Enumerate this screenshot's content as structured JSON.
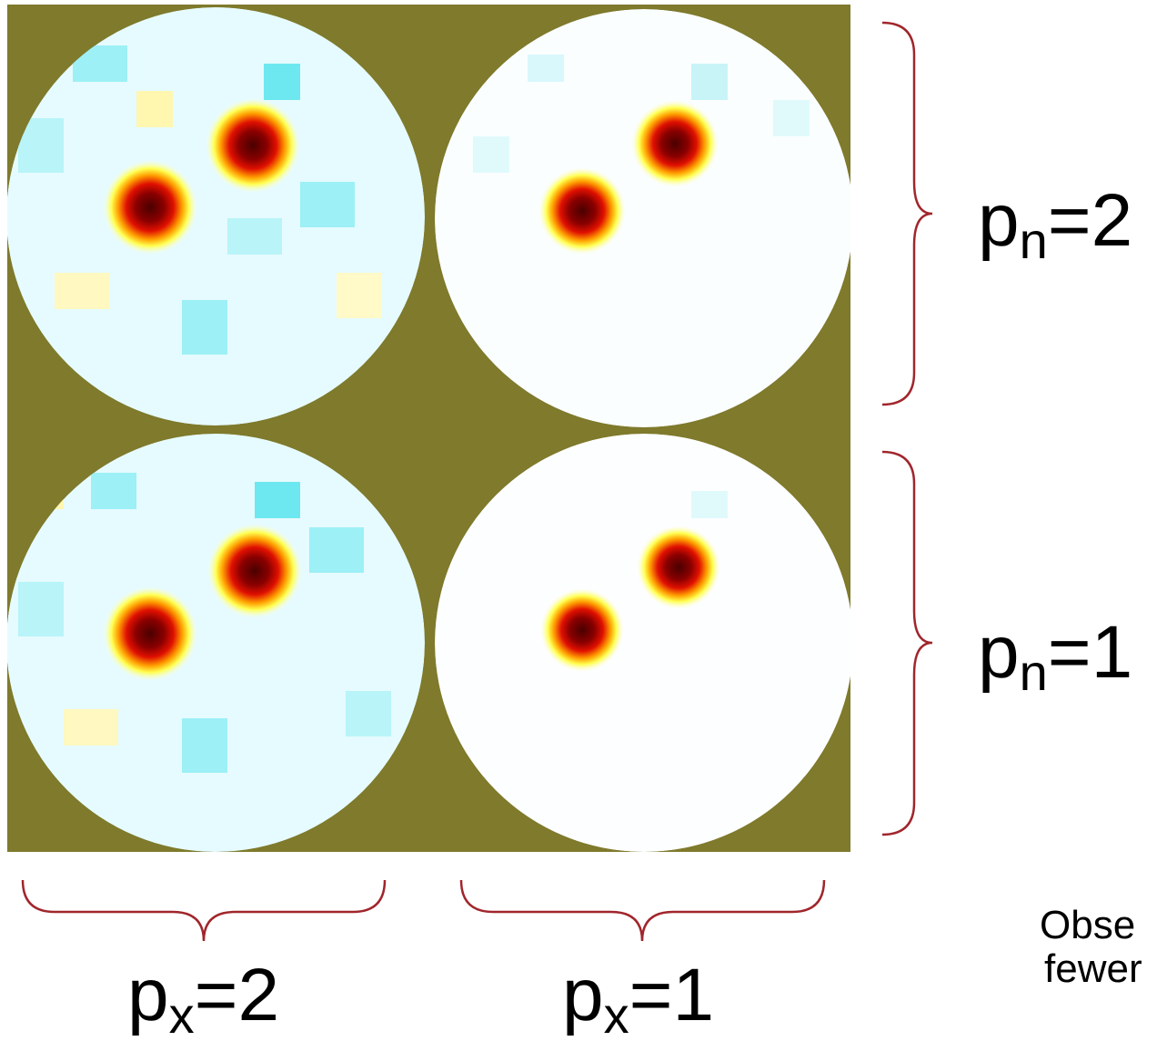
{
  "labels": {
    "rows": [
      {
        "base": "p",
        "sub": "n",
        "rest": "=2"
      },
      {
        "base": "p",
        "sub": "n",
        "rest": "=1"
      }
    ],
    "cols": [
      {
        "base": "p",
        "sub": "x",
        "rest": "=2"
      },
      {
        "base": "p",
        "sub": "x",
        "rest": "=1"
      }
    ]
  },
  "note": [
    "Obse",
    "fewer"
  ]
}
